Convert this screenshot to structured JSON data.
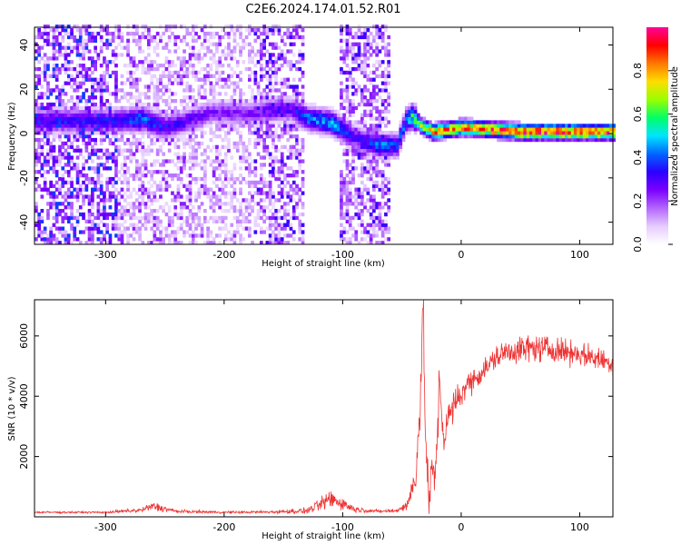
{
  "figure": {
    "title": "C2E6.2024.174.01.52.R01"
  },
  "chart_data": [
    {
      "type": "heatmap",
      "xlabel": "Height of straight line (km)",
      "ylabel": "Frequency (Hz)",
      "xlim": [
        -360,
        128
      ],
      "ylim": [
        -50,
        48
      ],
      "xticks": [
        -300,
        -200,
        -100,
        0,
        100
      ],
      "yticks": [
        -40,
        -20,
        0,
        20,
        40
      ],
      "colorbar": {
        "label": "Normalized spectral amplitude",
        "range": [
          0,
          1
        ],
        "ticks": [
          "0.0",
          "0.2",
          "0.4",
          "0.6",
          "0.8"
        ],
        "colormap": [
          "#ffffff",
          "#e6ccff",
          "#b366ff",
          "#7a00ff",
          "#2a00ff",
          "#0066ff",
          "#00e5ff",
          "#00ff66",
          "#99ff00",
          "#ffdd00",
          "#ff7700",
          "#ff0000",
          "#ff0099"
        ]
      },
      "ridge": {
        "x": [
          -290,
          -270,
          -250,
          -210,
          -180,
          -160,
          -145,
          -130,
          -110,
          -90,
          -70,
          -55,
          -48,
          -42,
          -35,
          -25,
          0,
          50,
          128
        ],
        "freq": [
          5,
          6,
          2,
          9,
          8,
          10,
          10,
          6,
          4,
          -3,
          -6,
          -6,
          5,
          7,
          3,
          0,
          2,
          0,
          0
        ],
        "amplitude": [
          0.35,
          0.45,
          0.35,
          0.25,
          0.25,
          0.3,
          0.3,
          0.45,
          0.5,
          0.3,
          0.45,
          0.4,
          0.45,
          0.6,
          0.7,
          0.85,
          0.9,
          0.95,
          0.95
        ]
      },
      "noise_floor": [
        {
          "x0": -360,
          "x1": -290,
          "level": 0.15
        },
        {
          "x0": -290,
          "x1": -175,
          "level": 0.08
        },
        {
          "x0": -175,
          "x1": -133,
          "level": 0.12
        },
        {
          "x0": -133,
          "x1": -103,
          "level": 0.0
        },
        {
          "x0": -103,
          "x1": -60,
          "level": 0.12
        },
        {
          "x0": -60,
          "x1": 128,
          "level": 0.0
        }
      ]
    },
    {
      "type": "line",
      "xlabel": "Height of straight line (km)",
      "ylabel": "SNR (10 * v/v)",
      "xlim": [
        -360,
        128
      ],
      "ylim": [
        0,
        7200
      ],
      "xticks": [
        -300,
        -200,
        -100,
        0,
        100
      ],
      "yticks": [
        2000,
        4000,
        6000
      ],
      "color": "#ee3333",
      "series": [
        {
          "x": [
            -360,
            -300,
            -270,
            -260,
            -240,
            -200,
            -160,
            -130,
            -120,
            -110,
            -100,
            -90,
            -70,
            -55,
            -45,
            -38,
            -35,
            -32,
            -30,
            -27,
            -25,
            -22,
            -18,
            -15,
            -12,
            -8,
            -3,
            5,
            15,
            30,
            40,
            60,
            80,
            100,
            128
          ],
          "values": [
            150,
            150,
            220,
            350,
            180,
            150,
            160,
            200,
            380,
            600,
            450,
            250,
            180,
            200,
            400,
            1500,
            3500,
            6900,
            2500,
            400,
            1600,
            1200,
            4600,
            2500,
            3200,
            3500,
            3900,
            4400,
            4700,
            5300,
            5500,
            5600,
            5550,
            5400,
            5100
          ],
          "noise": [
            50,
            50,
            120,
            250,
            80,
            60,
            80,
            150,
            300,
            500,
            350,
            150,
            80,
            100,
            300,
            900,
            1500,
            1800,
            1500,
            800,
            900,
            900,
            1200,
            1000,
            900,
            800,
            800,
            600,
            600,
            600,
            700,
            700,
            650,
            600,
            600
          ]
        }
      ]
    }
  ]
}
